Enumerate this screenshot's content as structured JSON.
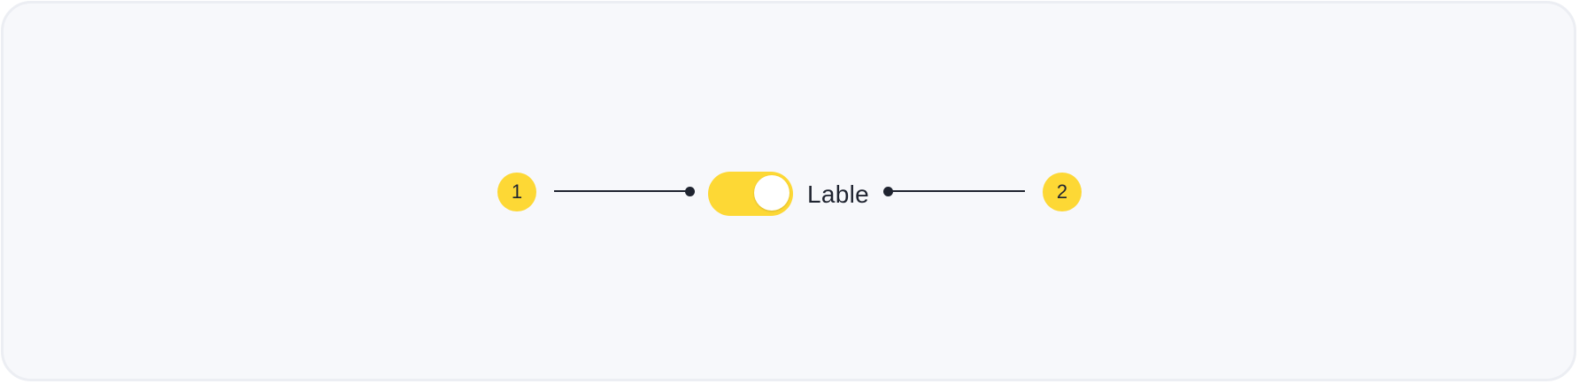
{
  "colors": {
    "background": "#F7F8FB",
    "frame_border": "#ECEEF3",
    "accent": "#FDD835",
    "line": "#1F2430",
    "knob": "#FFFFFF"
  },
  "callouts": [
    {
      "number": "1"
    },
    {
      "number": "2"
    }
  ],
  "toggle": {
    "state": "on",
    "label": "Lable"
  }
}
